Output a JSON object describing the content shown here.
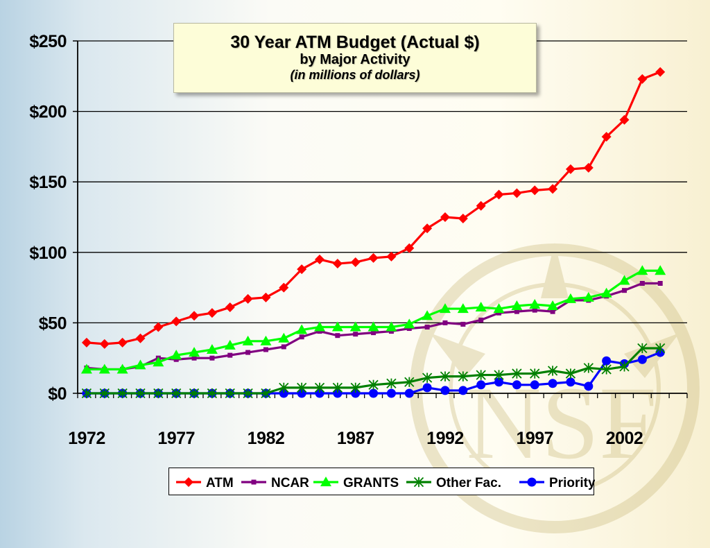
{
  "slide": {
    "watermark_text": "NSF",
    "colors": {
      "ATM": "#ff0000",
      "NCAR": "#800080",
      "GRANTS": "#00ff00",
      "Other Fac.": "#008000",
      "Priority": "#0000ff"
    }
  },
  "chart_data": {
    "type": "line",
    "title": "30 Year ATM Budget (Actual $)",
    "subtitle": "by Major Activity",
    "unit_note": "(in millions of dollars)",
    "xlabel": "",
    "ylabel": "",
    "y_ticks": [
      "$0",
      "$50",
      "$100",
      "$150",
      "$200",
      "$250"
    ],
    "x_ticks": [
      "1972",
      "1977",
      "1982",
      "1987",
      "1992",
      "1997",
      "2002"
    ],
    "ylim": [
      0,
      250
    ],
    "xlim": [
      1972,
      2005
    ],
    "grid": "horizontal",
    "legend_position": "bottom",
    "x": [
      1972,
      1973,
      1974,
      1975,
      1976,
      1977,
      1978,
      1979,
      1980,
      1981,
      1982,
      1983,
      1984,
      1985,
      1986,
      1987,
      1988,
      1989,
      1990,
      1991,
      1992,
      1993,
      1994,
      1995,
      1996,
      1997,
      1998,
      1999,
      2000,
      2001,
      2002,
      2003,
      2004
    ],
    "series": [
      {
        "name": "ATM",
        "marker": "diamond",
        "color": "#ff0000",
        "values": [
          36,
          35,
          36,
          39,
          47,
          51,
          55,
          57,
          61,
          67,
          68,
          75,
          88,
          95,
          92,
          93,
          96,
          97,
          103,
          117,
          125,
          124,
          133,
          141,
          142,
          144,
          145,
          159,
          160,
          182,
          194,
          223,
          228
        ]
      },
      {
        "name": "NCAR",
        "marker": "square",
        "color": "#800080",
        "values": [
          18,
          17,
          17,
          19,
          25,
          24,
          25,
          25,
          27,
          29,
          31,
          33,
          40,
          44,
          41,
          42,
          43,
          44,
          46,
          47,
          50,
          49,
          52,
          57,
          58,
          59,
          58,
          66,
          66,
          69,
          73,
          78,
          78
        ]
      },
      {
        "name": "GRANTS",
        "marker": "triangle",
        "color": "#00ff00",
        "values": [
          17,
          17,
          17,
          20,
          22,
          27,
          29,
          31,
          34,
          37,
          37,
          39,
          45,
          47,
          47,
          47,
          47,
          47,
          49,
          55,
          60,
          60,
          61,
          60,
          62,
          63,
          62,
          67,
          68,
          71,
          80,
          87,
          87
        ]
      },
      {
        "name": "Other Fac.",
        "marker": "star",
        "color": "#008000",
        "values": [
          0,
          0,
          0,
          0,
          0,
          0,
          0,
          0,
          0,
          0,
          0,
          4,
          4,
          4,
          4,
          4,
          6,
          7,
          8,
          11,
          12,
          12,
          13,
          13,
          14,
          14,
          16,
          14,
          18,
          17,
          19,
          32,
          32
        ]
      },
      {
        "name": "Priority",
        "marker": "circle",
        "color": "#0000ff",
        "values": [
          0,
          0,
          0,
          0,
          0,
          0,
          0,
          0,
          0,
          0,
          0,
          0,
          0,
          0,
          0,
          0,
          0,
          0,
          0,
          4,
          2,
          2,
          6,
          8,
          6,
          6,
          7,
          8,
          5,
          23,
          21,
          24,
          29
        ]
      }
    ]
  }
}
